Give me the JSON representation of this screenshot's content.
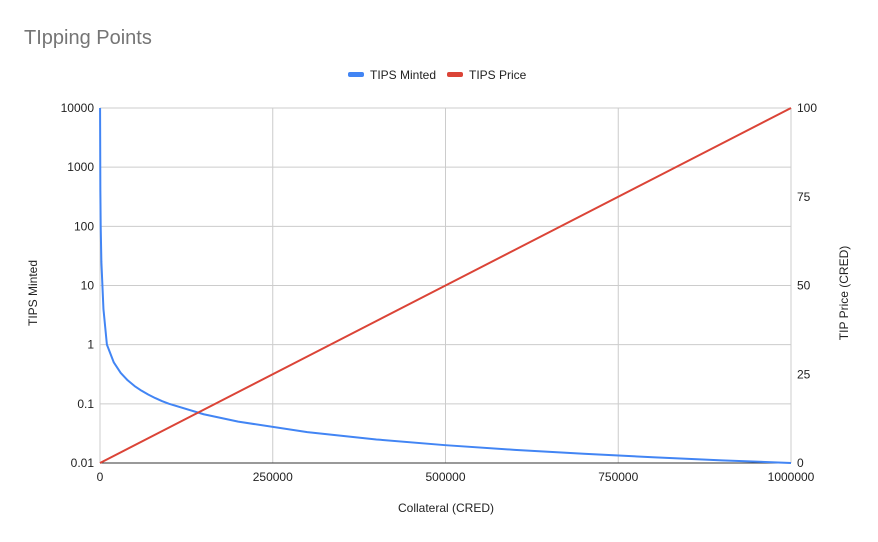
{
  "chart_data": {
    "type": "line",
    "title": "TIpping Points",
    "xlabel": "Collateral (CRED)",
    "ylabel_left": "TIPS Minted",
    "ylabel_right": "TIP Price (CRED)",
    "legend_position": "top-center",
    "grid": true,
    "xlim": [
      0,
      1000000
    ],
    "x_ticks": [
      "0",
      "250000",
      "500000",
      "750000",
      "1000000"
    ],
    "x_tick_values": [
      0,
      250000,
      500000,
      750000,
      1000000
    ],
    "ylim_left": [
      0.01,
      10000
    ],
    "y_scale_left": "log",
    "y_ticks_left": [
      "0.01",
      "0.1",
      "1",
      "10",
      "100",
      "1000",
      "10000"
    ],
    "y_tick_values_left": [
      0.01,
      0.1,
      1,
      10,
      100,
      1000,
      10000
    ],
    "ylim_right": [
      0,
      100
    ],
    "y_ticks_right": [
      "0",
      "25",
      "50",
      "75",
      "100"
    ],
    "y_tick_values_right": [
      0,
      25,
      50,
      75,
      100
    ],
    "series": [
      {
        "name": "TIPS Minted",
        "axis": "left",
        "color": "#4285f4",
        "x": [
          100,
          500,
          1000,
          2000,
          5000,
          10000,
          20000,
          30000,
          40000,
          50000,
          60000,
          70000,
          80000,
          90000,
          100000,
          150000,
          200000,
          300000,
          400000,
          500000,
          600000,
          700000,
          800000,
          900000,
          1000000
        ],
        "y": [
          10000,
          400,
          100,
          25,
          4,
          1,
          0.5,
          0.333,
          0.25,
          0.2,
          0.167,
          0.143,
          0.125,
          0.111,
          0.1,
          0.0667,
          0.05,
          0.0333,
          0.025,
          0.02,
          0.0167,
          0.0143,
          0.0125,
          0.0111,
          0.01
        ]
      },
      {
        "name": "TIPS Price",
        "axis": "right",
        "color": "#db4437",
        "x": [
          0,
          100000,
          200000,
          300000,
          400000,
          500000,
          600000,
          700000,
          800000,
          900000,
          1000000
        ],
        "y": [
          0,
          10,
          20,
          30,
          40,
          50,
          60,
          70,
          80,
          90,
          100
        ]
      }
    ]
  }
}
